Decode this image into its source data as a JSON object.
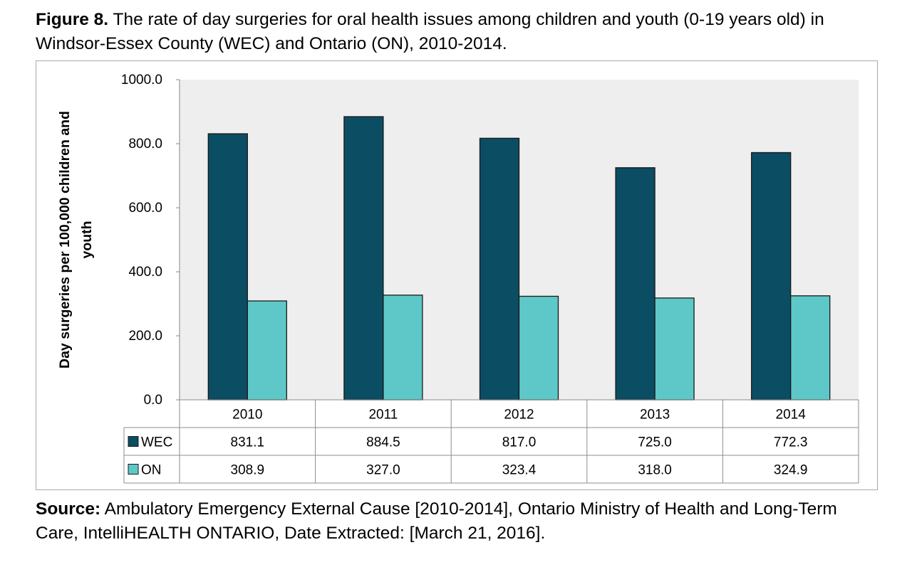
{
  "figure": {
    "label": "Figure 8.",
    "title": " The rate of day surgeries for oral health issues among children and youth (0-19 years old) in Windsor-Essex County (WEC) and Ontario (ON), 2010-2014."
  },
  "source": {
    "label": "Source:",
    "text": " Ambulatory Emergency External Cause [2010-2014], Ontario Ministry of Health and Long-Term Care, IntelliHEALTH ONTARIO, Date Extracted: [March 21, 2016]."
  },
  "chart_data": {
    "type": "bar",
    "categories": [
      "2010",
      "2011",
      "2012",
      "2013",
      "2014"
    ],
    "series": [
      {
        "name": "WEC",
        "values": [
          831.1,
          884.5,
          817.0,
          725.0,
          772.3
        ],
        "color": "#0b4d63"
      },
      {
        "name": "ON",
        "values": [
          308.9,
          327.0,
          323.4,
          318.0,
          324.9
        ],
        "color": "#5ec8c8"
      }
    ],
    "ylabel": "Day surgeries per 100,000 children and youth",
    "ylim": [
      0,
      1000
    ],
    "yticks": [
      0,
      200,
      400,
      600,
      800,
      1000
    ],
    "plot_background": "#eeeeee",
    "grid": false,
    "legend": "data-table"
  }
}
